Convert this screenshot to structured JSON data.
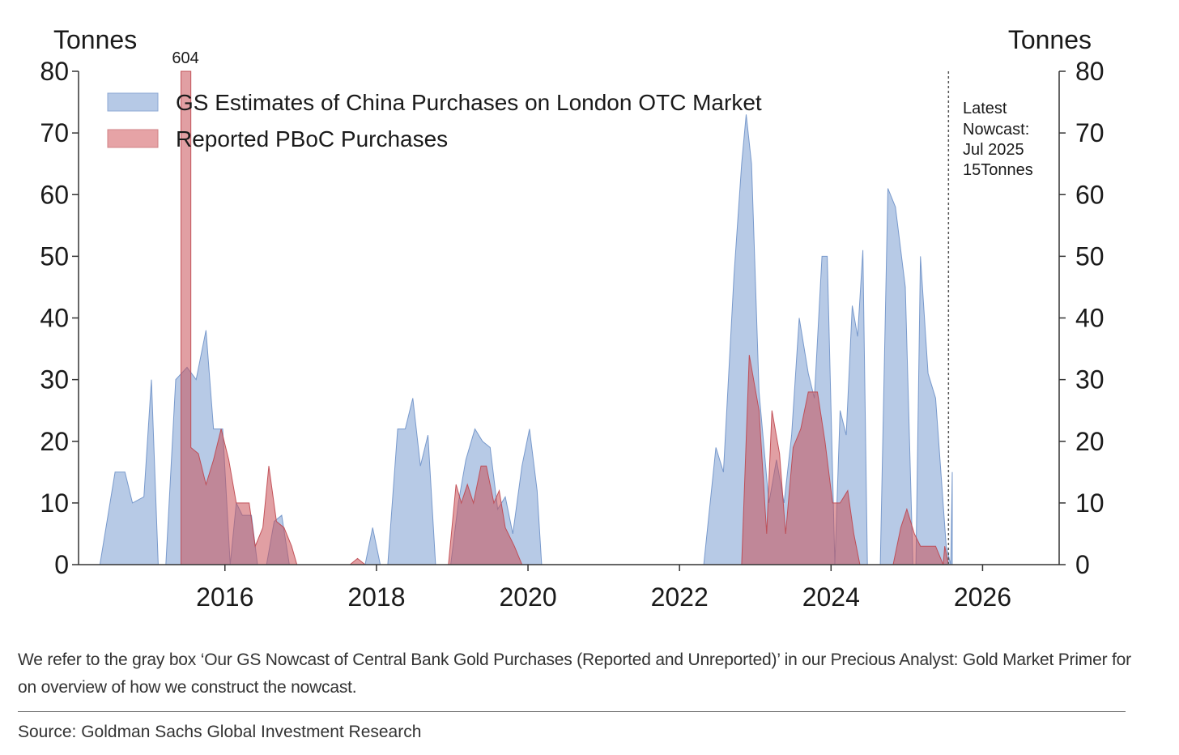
{
  "chart_data": {
    "type": "area",
    "title": "",
    "left_axis_label": "Tonnes",
    "right_axis_label": "Tonnes",
    "ylim": [
      0,
      80
    ],
    "y_ticks": [
      "0",
      "10",
      "20",
      "30",
      "40",
      "50",
      "60",
      "70",
      "80"
    ],
    "xlim": [
      2014.1,
      2027.0
    ],
    "x_ticks": [
      {
        "value": 2016,
        "label": "2016"
      },
      {
        "value": 2018,
        "label": "2018"
      },
      {
        "value": 2020,
        "label": "2020"
      },
      {
        "value": 2022,
        "label": "2022"
      },
      {
        "value": 2024,
        "label": "2024"
      },
      {
        "value": 2026,
        "label": "2026"
      }
    ],
    "series": [
      {
        "name": "GS Estimates of China Purchases on London OTC Market",
        "color": "#7b9fd1",
        "points": [
          [
            2014.35,
            0
          ],
          [
            2014.55,
            15
          ],
          [
            2014.68,
            15
          ],
          [
            2014.78,
            10
          ],
          [
            2014.93,
            11
          ],
          [
            2015.03,
            30
          ],
          [
            2015.12,
            0
          ],
          [
            2015.22,
            0
          ],
          [
            2015.35,
            30
          ],
          [
            2015.5,
            32
          ],
          [
            2015.62,
            30
          ],
          [
            2015.75,
            38
          ],
          [
            2015.85,
            22
          ],
          [
            2015.97,
            22
          ],
          [
            2016.07,
            0
          ],
          [
            2016.15,
            10
          ],
          [
            2016.23,
            8
          ],
          [
            2016.35,
            8
          ],
          [
            2016.43,
            0
          ],
          [
            2016.55,
            0
          ],
          [
            2016.65,
            7
          ],
          [
            2016.75,
            8
          ],
          [
            2016.85,
            0
          ],
          [
            2017.85,
            0
          ],
          [
            2017.95,
            6
          ],
          [
            2018.05,
            0
          ],
          [
            2018.15,
            0
          ],
          [
            2018.28,
            22
          ],
          [
            2018.38,
            22
          ],
          [
            2018.48,
            27
          ],
          [
            2018.58,
            16
          ],
          [
            2018.68,
            21
          ],
          [
            2018.78,
            0
          ],
          [
            2018.98,
            0
          ],
          [
            2019.08,
            10
          ],
          [
            2019.18,
            17
          ],
          [
            2019.3,
            22
          ],
          [
            2019.4,
            20
          ],
          [
            2019.5,
            19
          ],
          [
            2019.6,
            9
          ],
          [
            2019.7,
            11
          ],
          [
            2019.8,
            5
          ],
          [
            2019.92,
            16
          ],
          [
            2020.02,
            22
          ],
          [
            2020.12,
            12
          ],
          [
            2020.18,
            0
          ],
          [
            2022.32,
            0
          ],
          [
            2022.48,
            19
          ],
          [
            2022.58,
            15
          ],
          [
            2022.72,
            47
          ],
          [
            2022.82,
            65
          ],
          [
            2022.88,
            73
          ],
          [
            2022.95,
            65
          ],
          [
            2023.05,
            28
          ],
          [
            2023.18,
            10
          ],
          [
            2023.28,
            17
          ],
          [
            2023.38,
            10
          ],
          [
            2023.48,
            21
          ],
          [
            2023.58,
            40
          ],
          [
            2023.7,
            31
          ],
          [
            2023.78,
            27
          ],
          [
            2023.88,
            50
          ],
          [
            2023.95,
            50
          ],
          [
            2024.05,
            0
          ],
          [
            2024.12,
            25
          ],
          [
            2024.2,
            21
          ],
          [
            2024.28,
            42
          ],
          [
            2024.35,
            37
          ],
          [
            2024.42,
            51
          ],
          [
            2024.48,
            0
          ],
          [
            2024.65,
            0
          ],
          [
            2024.75,
            61
          ],
          [
            2024.85,
            58
          ],
          [
            2024.98,
            45
          ],
          [
            2025.08,
            0
          ],
          [
            2025.12,
            0
          ],
          [
            2025.18,
            50
          ],
          [
            2025.28,
            31
          ],
          [
            2025.38,
            27
          ],
          [
            2025.52,
            3
          ],
          [
            2025.58,
            0
          ],
          [
            2025.6,
            15
          ]
        ]
      },
      {
        "name": "Reported PBoC Purchases",
        "color": "#d97b7f",
        "points": [
          [
            2015.42,
            0
          ],
          [
            2015.42,
            80
          ],
          [
            2015.55,
            80
          ],
          [
            2015.55,
            19
          ],
          [
            2015.65,
            18
          ],
          [
            2015.75,
            13
          ],
          [
            2015.85,
            17
          ],
          [
            2015.95,
            22
          ],
          [
            2016.05,
            17
          ],
          [
            2016.15,
            10
          ],
          [
            2016.25,
            10
          ],
          [
            2016.32,
            10
          ],
          [
            2016.4,
            3
          ],
          [
            2016.5,
            6
          ],
          [
            2016.58,
            16
          ],
          [
            2016.68,
            7
          ],
          [
            2016.78,
            6
          ],
          [
            2016.88,
            3
          ],
          [
            2016.95,
            0
          ],
          [
            2017.65,
            0
          ],
          [
            2017.75,
            1
          ],
          [
            2017.85,
            0
          ],
          [
            2018.95,
            0
          ],
          [
            2019.05,
            13
          ],
          [
            2019.12,
            10
          ],
          [
            2019.2,
            13
          ],
          [
            2019.28,
            10
          ],
          [
            2019.38,
            16
          ],
          [
            2019.45,
            16
          ],
          [
            2019.55,
            10
          ],
          [
            2019.62,
            12
          ],
          [
            2019.7,
            6
          ],
          [
            2019.82,
            3
          ],
          [
            2019.92,
            0
          ],
          [
            2022.82,
            0
          ],
          [
            2022.92,
            34
          ],
          [
            2023.05,
            25
          ],
          [
            2023.15,
            5
          ],
          [
            2023.22,
            25
          ],
          [
            2023.32,
            18
          ],
          [
            2023.4,
            5
          ],
          [
            2023.5,
            19
          ],
          [
            2023.6,
            22
          ],
          [
            2023.7,
            28
          ],
          [
            2023.82,
            28
          ],
          [
            2023.92,
            20
          ],
          [
            2024.02,
            10
          ],
          [
            2024.12,
            10
          ],
          [
            2024.22,
            12
          ],
          [
            2024.3,
            5
          ],
          [
            2024.38,
            0
          ],
          [
            2024.82,
            0
          ],
          [
            2024.92,
            6
          ],
          [
            2025.0,
            9
          ],
          [
            2025.1,
            5
          ],
          [
            2025.18,
            3
          ],
          [
            2025.28,
            3
          ],
          [
            2025.38,
            3
          ],
          [
            2025.48,
            0
          ],
          [
            2025.5,
            3
          ],
          [
            2025.55,
            0
          ]
        ]
      }
    ],
    "spike_label": {
      "x": 2015.48,
      "text": "604"
    },
    "nowcast_line": {
      "x": 2025.55,
      "style": "dotted"
    },
    "annotation_lines": [
      "Latest",
      "Nowcast:",
      "Jul 2025",
      "15Tonnes"
    ],
    "legend_position": "top-left"
  },
  "footnote": "We refer to the gray box ‘Our GS Nowcast of Central Bank Gold Purchases (Reported and Unreported)’ in our Precious Analyst: Gold Market Primer for on overview of how we construct the nowcast.",
  "source": "Source: Goldman Sachs Global Investment Research"
}
